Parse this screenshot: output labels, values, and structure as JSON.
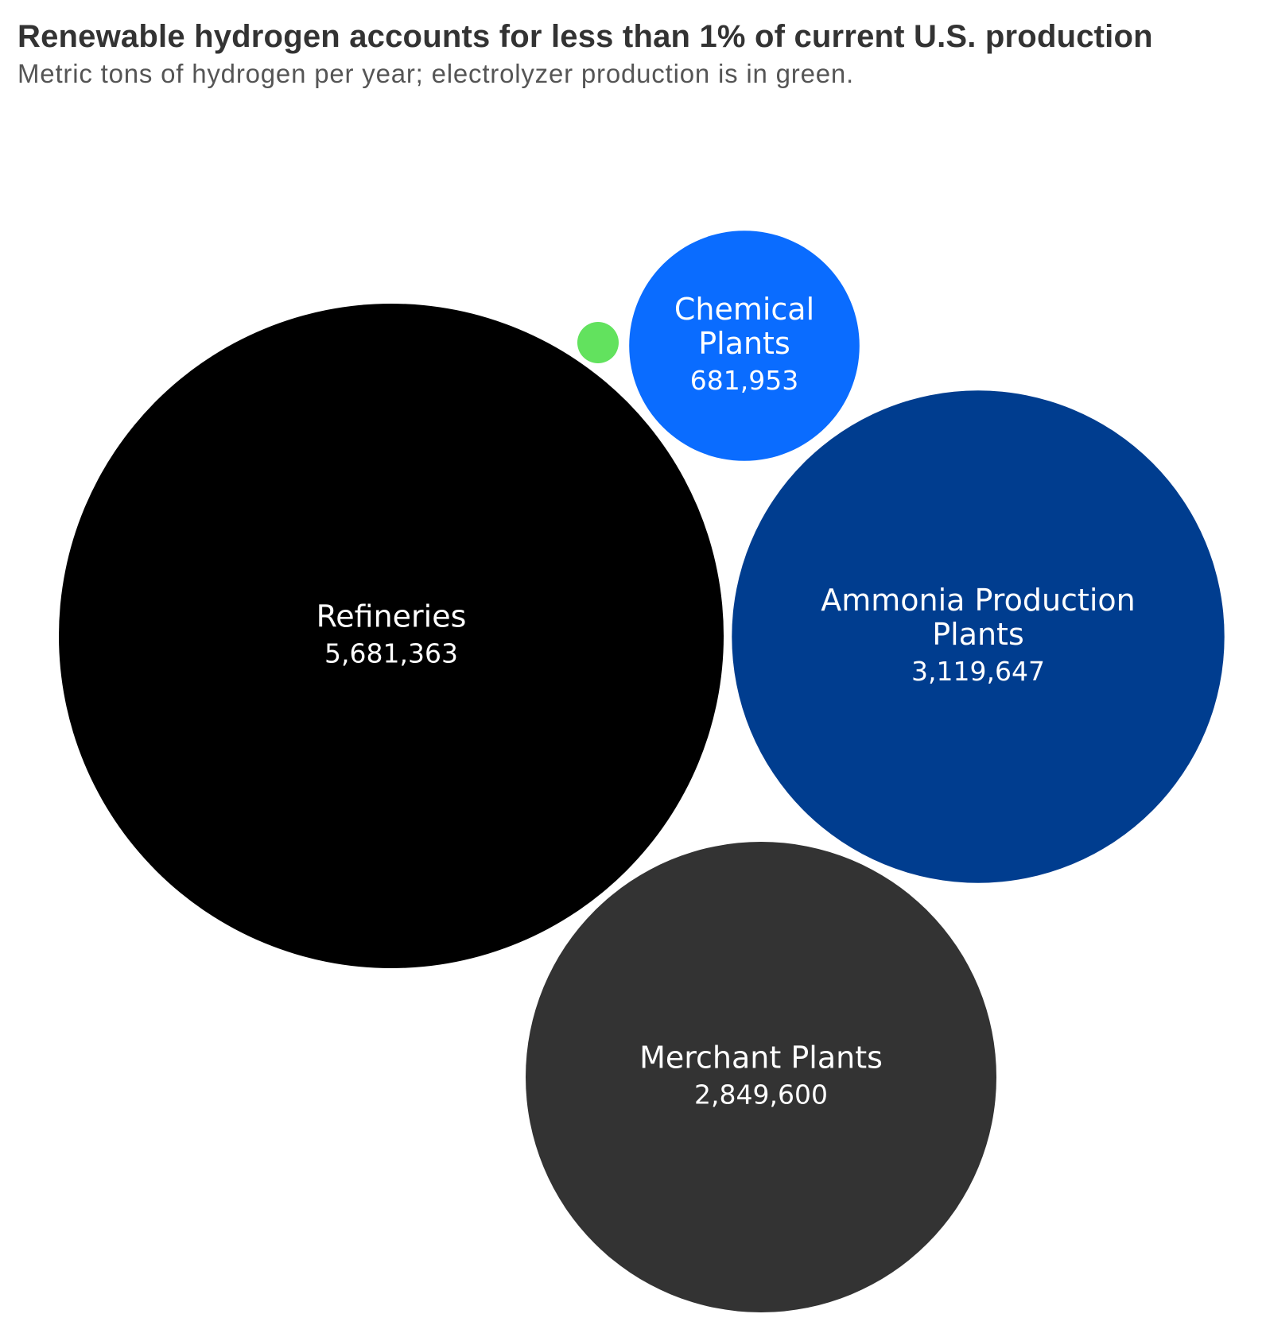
{
  "title": "Renewable hydrogen accounts for less than 1% of current U.S. production",
  "subtitle": "Metric tons of hydrogen per year; electrolyzer production is in green.",
  "chart_data": {
    "type": "bubble",
    "title": "Renewable hydrogen accounts for less than 1% of current U.S. production",
    "subtitle": "Metric tons of hydrogen per year; electrolyzer production is in green.",
    "unit": "Metric tons of hydrogen per year",
    "series": [
      {
        "name": "",
        "label_lines": [
          "Refineries"
        ],
        "value": 5681363,
        "value_label": "5,681,363",
        "color": "#000000"
      },
      {
        "name": "",
        "label_lines": [
          "Ammonia Production",
          "Plants"
        ],
        "value": 3119647,
        "value_label": "3,119,647",
        "color": "#003d8f"
      },
      {
        "name": "",
        "label_lines": [
          "Merchant Plants"
        ],
        "value": 2849600,
        "value_label": "2,849,600",
        "color": "#333333"
      },
      {
        "name": "",
        "label_lines": [
          "Chemical",
          "Plants"
        ],
        "value": 681953,
        "value_label": "681,953",
        "color": "#0a6cff"
      },
      {
        "name": "",
        "label_lines": [],
        "value": null,
        "value_label": "",
        "color": "#62e25e",
        "note": "electrolyzer production"
      }
    ]
  }
}
